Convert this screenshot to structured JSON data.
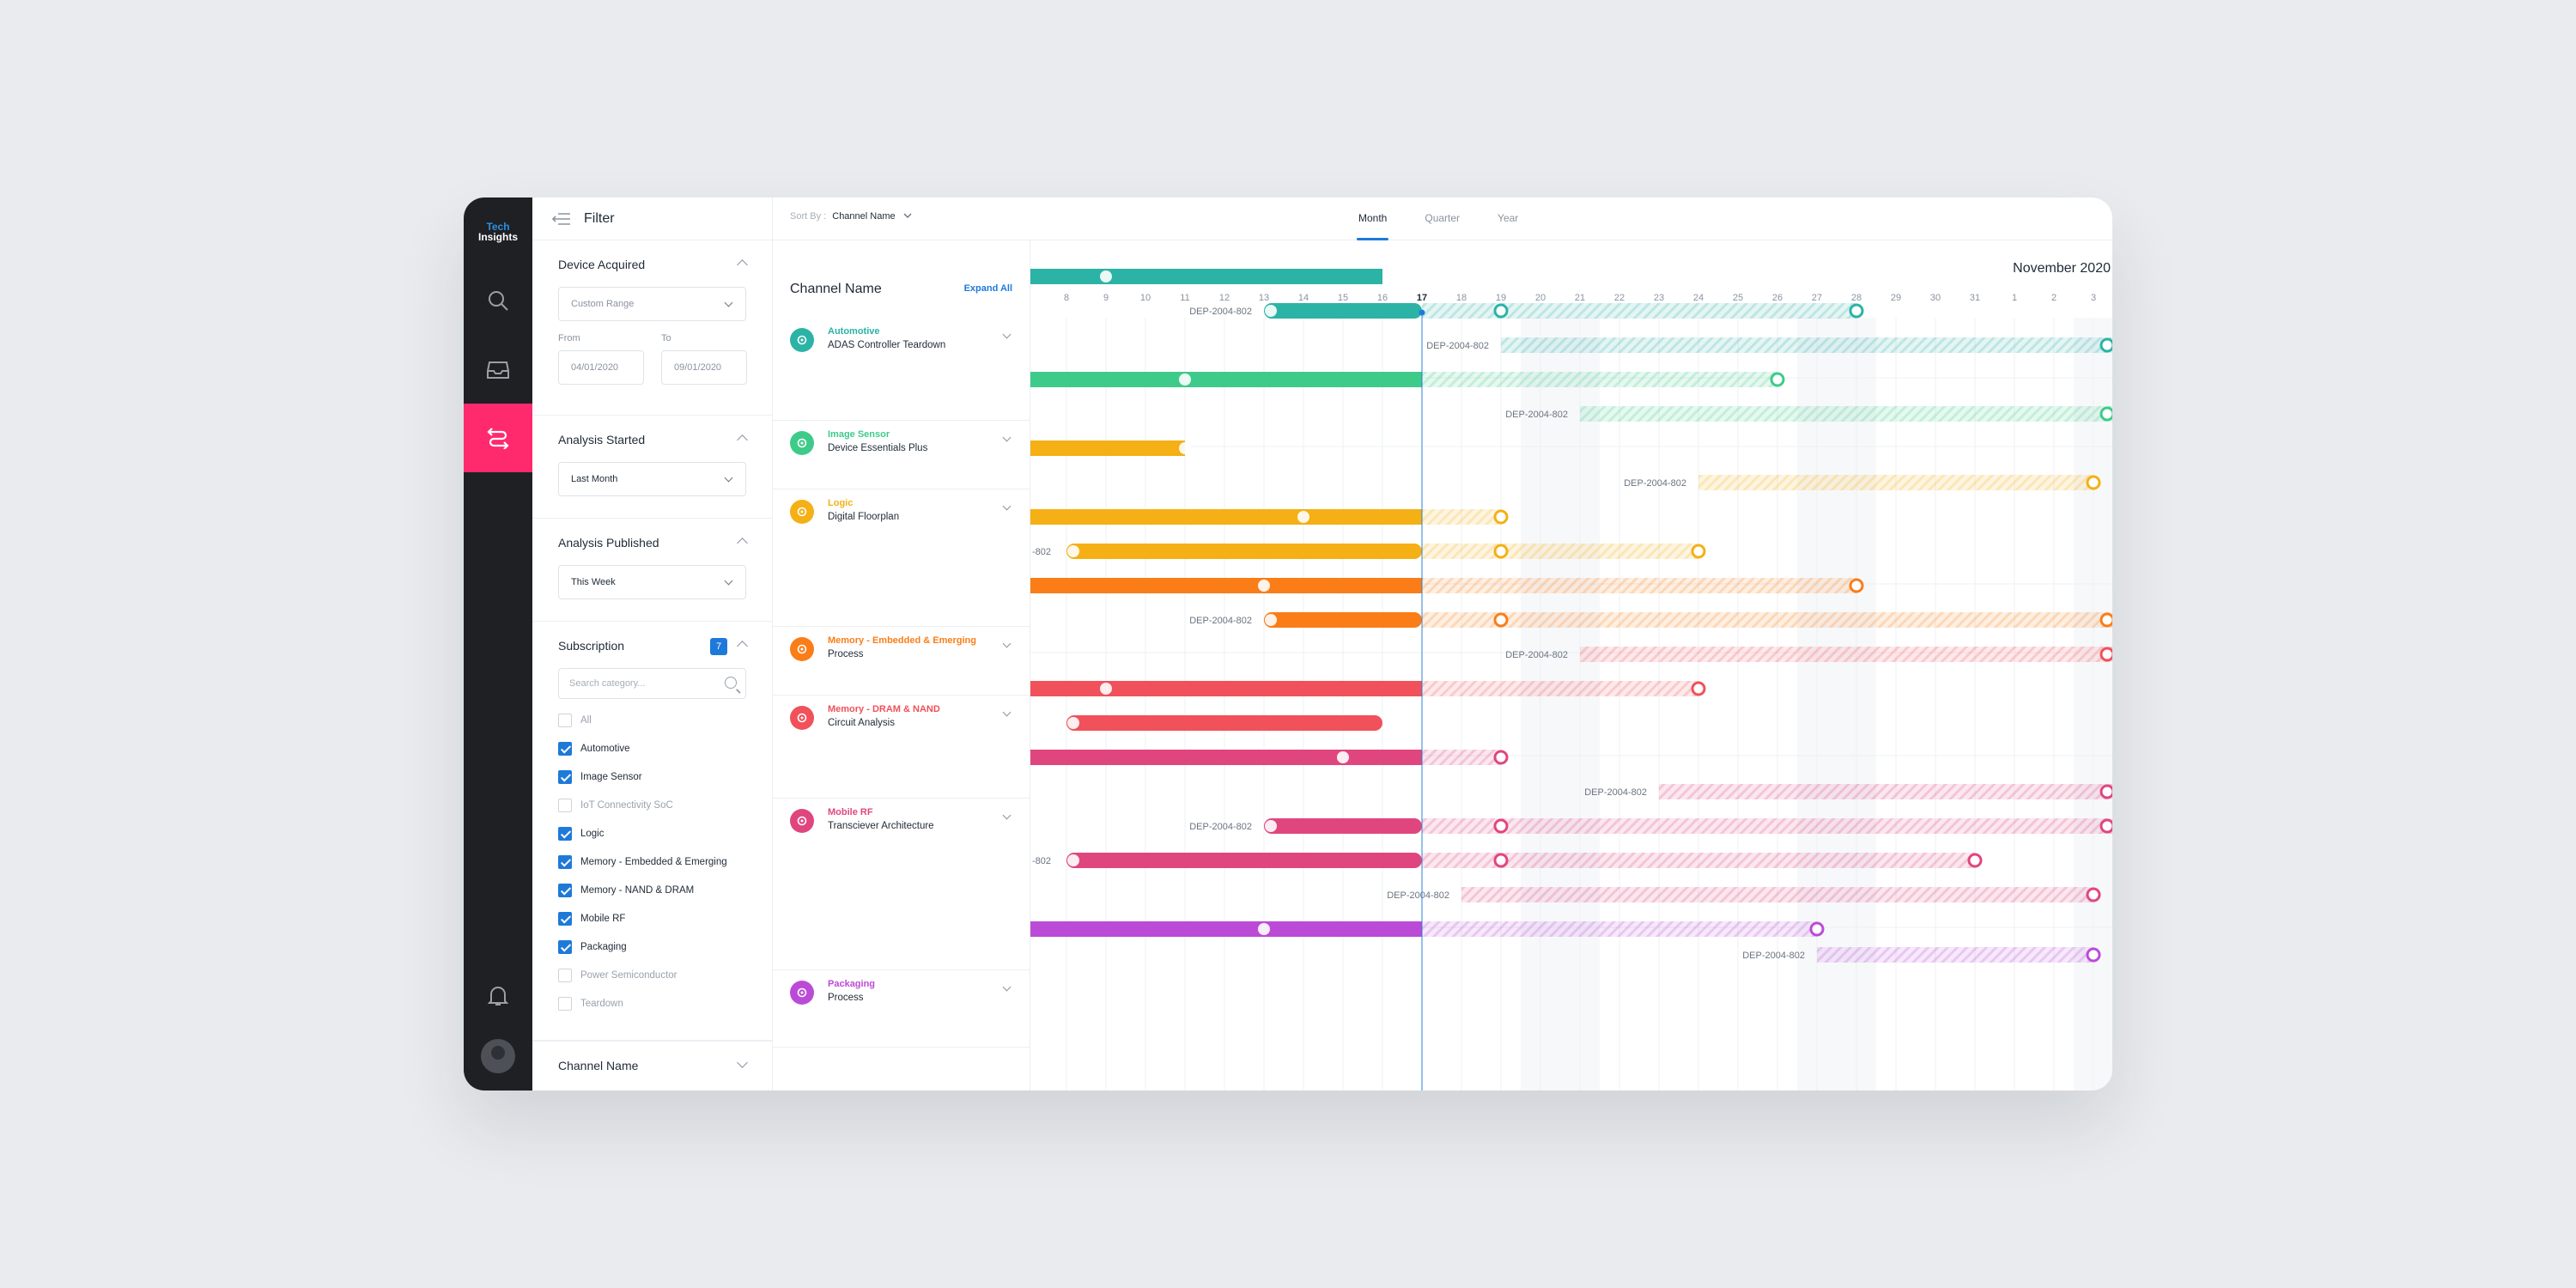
{
  "brand": {
    "line1": "Tech",
    "line2": "Insights"
  },
  "filter": {
    "title": "Filter",
    "device_acquired": {
      "title": "Device Acquired",
      "select": "Custom Range",
      "from_label": "From",
      "to_label": "To",
      "from": "04/01/2020",
      "to": "09/01/2020"
    },
    "analysis_started": {
      "title": "Analysis Started",
      "select": "Last Month"
    },
    "analysis_published": {
      "title": "Analysis Published",
      "select": "This Week"
    },
    "subscription": {
      "title": "Subscription",
      "count": "7",
      "search_placeholder": "Search category...",
      "items": [
        {
          "label": "All",
          "checked": false
        },
        {
          "label": "Automotive",
          "checked": true
        },
        {
          "label": "Image Sensor",
          "checked": true
        },
        {
          "label": "IoT Connectivity SoC",
          "checked": false
        },
        {
          "label": "Logic",
          "checked": true
        },
        {
          "label": "Memory - Embedded & Emerging",
          "checked": true
        },
        {
          "label": "Memory - NAND & DRAM",
          "checked": true
        },
        {
          "label": "Mobile RF",
          "checked": true
        },
        {
          "label": "Packaging",
          "checked": true
        },
        {
          "label": "Power Semiconductor",
          "checked": false
        },
        {
          "label": "Teardown",
          "checked": false
        }
      ]
    },
    "channel_name": {
      "title": "Channel Name"
    }
  },
  "topbar": {
    "sort_label": "Sort By :",
    "sort_value": "Channel Name",
    "tabs": [
      "Month",
      "Quarter",
      "Year"
    ],
    "active_tab": "Month"
  },
  "channels": {
    "title": "Channel Name",
    "expand": "Expand All",
    "groups": [
      {
        "name": "Automotive",
        "sub": "ADAS Controller Teardown",
        "color": "#2bb3a6"
      },
      {
        "name": "Image Sensor",
        "sub": "Device Essentials Plus",
        "color": "#3ecb8a"
      },
      {
        "name": "Logic",
        "sub": "Digital Floorplan",
        "color": "#f4b014"
      },
      {
        "name": "Memory - Embedded & Emerging",
        "sub": "Process",
        "color": "#fa7d18"
      },
      {
        "name": "Memory - DRAM & NAND",
        "sub": "Circuit Analysis",
        "color": "#f0515a"
      },
      {
        "name": "Mobile RF",
        "sub": "Transciever Architecture",
        "color": "#e0467e"
      },
      {
        "name": "Packaging",
        "sub": "Process",
        "color": "#bb4bd6"
      }
    ]
  },
  "timeline": {
    "month": "November 2020",
    "days": [
      "8",
      "9",
      "10",
      "11",
      "12",
      "13",
      "14",
      "15",
      "16",
      "17",
      "18",
      "19",
      "20",
      "21",
      "22",
      "23",
      "24",
      "25",
      "26",
      "27",
      "28",
      "29",
      "30",
      "31",
      "1",
      "2",
      "3"
    ],
    "today": "17",
    "bar_label": "DEP-2004-802",
    "cut_label": "-802"
  }
}
